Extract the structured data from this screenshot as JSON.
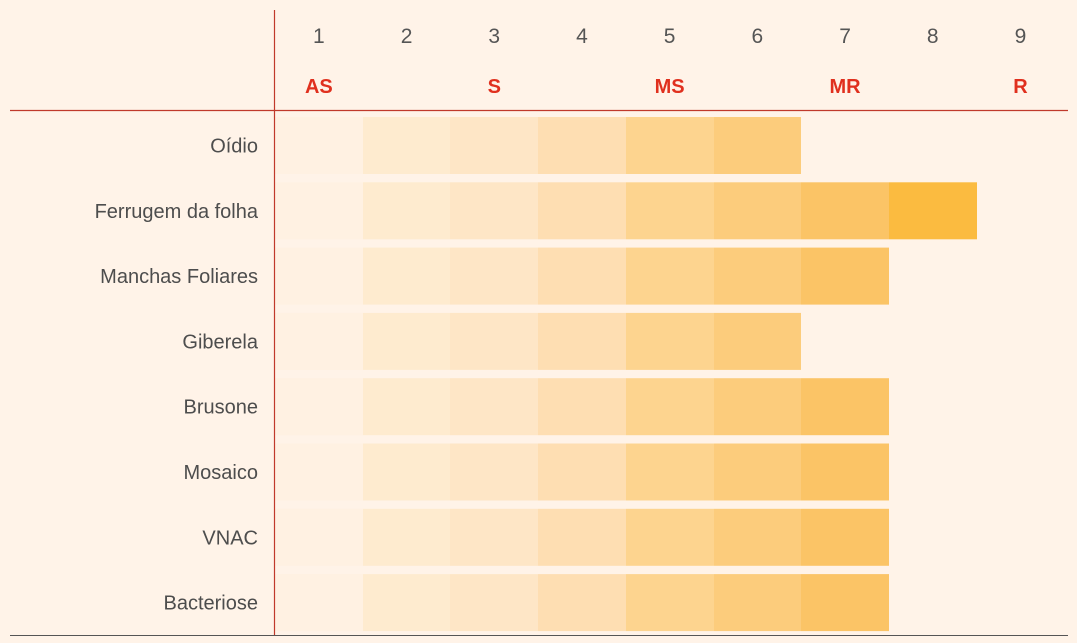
{
  "chart_data": {
    "type": "heatmap",
    "scale_numbers": [
      "1",
      "2",
      "3",
      "4",
      "5",
      "6",
      "7",
      "8",
      "9"
    ],
    "scale_classes": [
      {
        "label": "AS",
        "scale": 1
      },
      {
        "label": "S",
        "scale": 3
      },
      {
        "label": "MS",
        "scale": 5
      },
      {
        "label": "MR",
        "scale": 7
      },
      {
        "label": "R",
        "scale": 9
      }
    ],
    "rows": [
      {
        "label": "Oídio",
        "value": 6
      },
      {
        "label": "Ferrugem da folha",
        "value": 8
      },
      {
        "label": "Manchas Foliares",
        "value": 7
      },
      {
        "label": "Giberela",
        "value": 6
      },
      {
        "label": "Brusone",
        "value": 7
      },
      {
        "label": "Mosaico",
        "value": 7
      },
      {
        "label": "VNAC",
        "value": 7
      },
      {
        "label": "Bacteriose",
        "value": 7
      }
    ],
    "cell_colors": [
      "#fff1e2",
      "#feebcf",
      "#fee6c6",
      "#fedeb2",
      "#fdd48f",
      "#fccc7c",
      "#fbc466",
      "#fbbb40"
    ],
    "line_color": "#c0392b",
    "class_color": "#e0301e"
  }
}
